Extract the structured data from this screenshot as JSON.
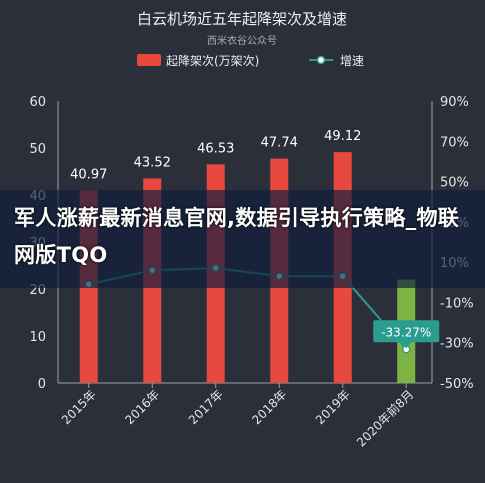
{
  "chart_data": {
    "type": "bar",
    "title": "白云机场近五年起降架次及增速",
    "subtitle": "西米衣谷公众号",
    "categories": [
      "2015年",
      "2016年",
      "2017年",
      "2018年",
      "2019年",
      "2020年前8月"
    ],
    "series": [
      {
        "name": "起降架次(万架次)",
        "kind": "bar",
        "axis": "left",
        "values": [
          40.97,
          43.52,
          46.53,
          47.74,
          49.12,
          22.0
        ],
        "labels": [
          "40.97",
          "43.52",
          "46.53",
          "47.74",
          "49.12",
          ""
        ],
        "colors": [
          "#e8493f",
          "#e8493f",
          "#e8493f",
          "#e8493f",
          "#e8493f",
          "#7cb342"
        ]
      },
      {
        "name": "增速",
        "kind": "line",
        "axis": "right",
        "values": [
          -1,
          6,
          7,
          3,
          3,
          -33.27
        ],
        "highlight_index": 5,
        "highlight_label": "-33.27%",
        "color": "#2a9d8f"
      }
    ],
    "y_left": {
      "lim": [
        0,
        60
      ],
      "ticks": [
        "0",
        "10",
        "20",
        "30",
        "40",
        "50",
        "60"
      ]
    },
    "y_right": {
      "lim": [
        -50,
        90
      ],
      "ticks": [
        "-50%",
        "-30%",
        "-10%",
        "10%",
        "30%",
        "50%",
        "70%",
        "90%"
      ]
    },
    "legend_position": "top-center",
    "grid": false
  },
  "banner": {
    "text": "军人涨薪最新消息官网,数据引导执行策略_物联网版TQO"
  },
  "colors": {
    "background": "#2b2f3a",
    "bar": "#e8493f",
    "bar_highlight": "#7cb342",
    "line": "#2a9d8f",
    "text": "#e6e6e6"
  }
}
